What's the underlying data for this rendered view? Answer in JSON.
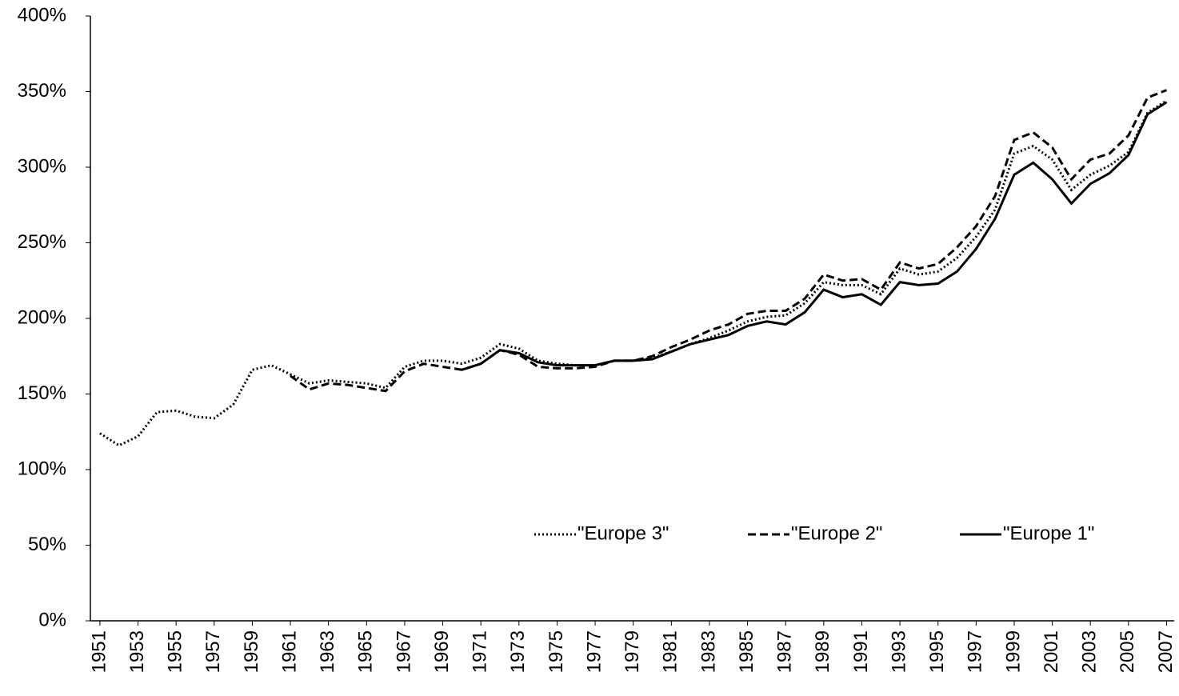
{
  "chart_data": {
    "type": "line",
    "x": [
      1951,
      1952,
      1953,
      1954,
      1955,
      1956,
      1957,
      1958,
      1959,
      1960,
      1961,
      1962,
      1963,
      1964,
      1965,
      1966,
      1967,
      1968,
      1969,
      1970,
      1971,
      1972,
      1973,
      1974,
      1975,
      1976,
      1977,
      1978,
      1979,
      1980,
      1981,
      1982,
      1983,
      1984,
      1985,
      1986,
      1987,
      1988,
      1989,
      1990,
      1991,
      1992,
      1993,
      1994,
      1995,
      1996,
      1997,
      1998,
      1999,
      2000,
      2001,
      2002,
      2003,
      2004,
      2005,
      2006,
      2007
    ],
    "series": [
      {
        "name": "\"Europe 3\"",
        "color": "#000000",
        "dash": "dotted",
        "values": [
          124,
          116,
          122,
          138,
          139,
          135,
          134,
          143,
          166,
          169,
          163,
          157,
          159,
          158,
          157,
          154,
          168,
          172,
          172,
          170,
          174,
          183,
          180,
          172,
          170,
          169,
          169,
          172,
          172,
          174,
          178,
          183,
          187,
          192,
          198,
          201,
          202,
          210,
          224,
          222,
          222,
          216,
          233,
          229,
          231,
          240,
          254,
          272,
          309,
          314,
          305,
          285,
          295,
          301,
          310,
          336,
          344
        ]
      },
      {
        "name": "\"Europe 2\"",
        "color": "#000000",
        "dash": "dashed",
        "values": [
          null,
          null,
          null,
          null,
          null,
          null,
          null,
          null,
          null,
          null,
          162,
          153,
          157,
          156,
          154,
          152,
          165,
          170,
          168,
          166,
          170,
          179,
          176,
          168,
          167,
          167,
          168,
          172,
          172,
          175,
          181,
          186,
          192,
          196,
          203,
          205,
          205,
          213,
          229,
          225,
          226,
          219,
          237,
          233,
          236,
          247,
          261,
          281,
          318,
          323,
          313,
          292,
          305,
          309,
          321,
          346,
          351
        ]
      },
      {
        "name": "\"Europe 1\"",
        "color": "#000000",
        "dash": "solid",
        "values": [
          null,
          null,
          null,
          null,
          null,
          null,
          null,
          null,
          null,
          null,
          null,
          null,
          null,
          null,
          null,
          null,
          null,
          null,
          null,
          166,
          170,
          179,
          177,
          171,
          169,
          169,
          169,
          172,
          172,
          173,
          178,
          183,
          186,
          189,
          195,
          198,
          196,
          204,
          219,
          214,
          216,
          209,
          224,
          222,
          223,
          231,
          246,
          266,
          295,
          303,
          292,
          276,
          289,
          296,
          308,
          335,
          343
        ]
      }
    ],
    "xlim": [
      1950.5,
      2007.4
    ],
    "xticks": [
      1951,
      1953,
      1955,
      1957,
      1959,
      1961,
      1963,
      1965,
      1967,
      1969,
      1971,
      1973,
      1975,
      1977,
      1979,
      1981,
      1983,
      1985,
      1987,
      1989,
      1991,
      1993,
      1995,
      1997,
      1999,
      2001,
      2003,
      2005,
      2007
    ],
    "ylim": [
      0,
      400
    ],
    "yticks": [
      {
        "value": 0,
        "label": "0%"
      },
      {
        "value": 50,
        "label": "50%"
      },
      {
        "value": 100,
        "label": "100%"
      },
      {
        "value": 150,
        "label": "150%"
      },
      {
        "value": 200,
        "label": "200%"
      },
      {
        "value": 250,
        "label": "250%"
      },
      {
        "value": 300,
        "label": "300%"
      },
      {
        "value": 350,
        "label": "350%"
      },
      {
        "value": 400,
        "label": "400%"
      }
    ],
    "grid": false,
    "legend": "lower right"
  }
}
